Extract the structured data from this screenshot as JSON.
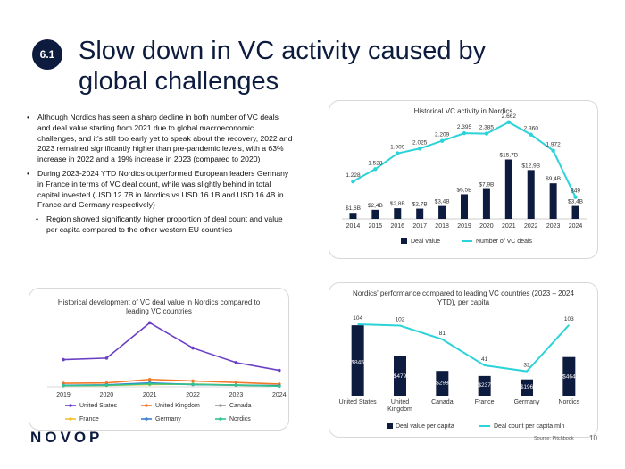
{
  "header": {
    "badge": "6.1",
    "title": "Slow down in VC activity caused by global challenges"
  },
  "bullets": [
    "Although Nordics has seen a sharp decline in both number of VC deals and deal value starting from 2021 due to global macroeconomic challenges, and it’s still too early yet to speak about the recovery, 2022 and 2023 remained significantly higher than pre-pandemic levels, with a 63% increase in 2022 and a 19% increase in 2023 (compared to 2020)",
    "During 2023-2024 YTD Nordics outperformed European leaders Germany in France in terms of VC deal count, while was slightly behind in total capital invested (USD 12.7B in Nordics vs USD 16.1B and USD 16.4B in France and Germany respectively)",
    "Region showed significantly higher proportion of deal count and value per capita compared to the other western EU countries"
  ],
  "footer": {
    "logo": "NOVOP",
    "source": "Source: Pitchbook",
    "page": "10"
  },
  "chart_data": [
    {
      "type": "bar+line",
      "title": "Historical VC activity in Nordics",
      "categories": [
        "2014",
        "2015",
        "2016",
        "2017",
        "2018",
        "2019",
        "2020",
        "2021",
        "2022",
        "2023",
        "2024"
      ],
      "series": [
        {
          "name": "Deal value",
          "type": "bar",
          "color": "#0d1b3e",
          "values": [
            1.6,
            2.4,
            2.8,
            2.7,
            3.4,
            6.5,
            7.9,
            15.7,
            12.9,
            9.4,
            3.4
          ],
          "labels": [
            "$1,6B",
            "$2,4B",
            "$2,8B",
            "$2,7B",
            "$3,4B",
            "$6,5B",
            "$7,9B",
            "$15,7B",
            "$12,9B",
            "$9,4B",
            "$3,4B"
          ]
        },
        {
          "name": "Number of VC deals",
          "type": "line",
          "color": "#2cd3d8",
          "values": [
            1228,
            1528,
            1909,
            2025,
            2209,
            2395,
            2385,
            2662,
            2360,
            1972,
            849
          ],
          "labels": [
            "1.228",
            "1.528",
            "1.909",
            "2.025",
            "2.209",
            "2.395",
            "2.385",
            "2.662",
            "2.360",
            "1.972",
            "849"
          ]
        }
      ],
      "legend": "bottom"
    },
    {
      "type": "line",
      "title": "Historical development of VC deal value in Nordics compared to leading VC countries",
      "categories": [
        "2019",
        "2020",
        "2021",
        "2022",
        "2023",
        "2024"
      ],
      "series": [
        {
          "name": "United States",
          "color": "#6b3fc4",
          "values": [
            140,
            148,
            330,
            200,
            125,
            85
          ]
        },
        {
          "name": "United Kingdom",
          "color": "#f07a2a",
          "values": [
            18,
            20,
            38,
            30,
            22,
            14
          ]
        },
        {
          "name": "Canada",
          "color": "#9a9a9a",
          "values": [
            6,
            8,
            16,
            12,
            8,
            5
          ]
        },
        {
          "name": "France",
          "color": "#f2c230",
          "values": [
            6,
            7,
            12,
            14,
            9,
            5
          ]
        },
        {
          "name": "Germany",
          "color": "#3a7fd1",
          "values": [
            8,
            10,
            20,
            12,
            9,
            6
          ]
        },
        {
          "name": "Nordics",
          "color": "#2fc48d",
          "values": [
            6,
            8,
            15,
            13,
            9,
            3
          ]
        }
      ],
      "legend": "bottom"
    },
    {
      "type": "bar+line",
      "title": "Nordics' performance compared to leading VC countries (2023 – 2024 YTD), per capita",
      "categories": [
        "United States",
        "United Kingdom",
        "Canada",
        "France",
        "Germany",
        "Nordics"
      ],
      "series": [
        {
          "name": "Deal value per capita",
          "type": "bar",
          "color": "#0d1b3e",
          "values": [
            845,
            479,
            298,
            237,
            196,
            464
          ],
          "labels": [
            "$845",
            "$479",
            "$298",
            "$237",
            "$196",
            "$464"
          ]
        },
        {
          "name": "Deal count per capita mln",
          "type": "line",
          "color": "#2cd3d8",
          "values": [
            104,
            102,
            81,
            41,
            32,
            103
          ],
          "labels": [
            "104",
            "102",
            "81",
            "41",
            "32",
            "103"
          ]
        }
      ],
      "legend": "bottom"
    }
  ]
}
